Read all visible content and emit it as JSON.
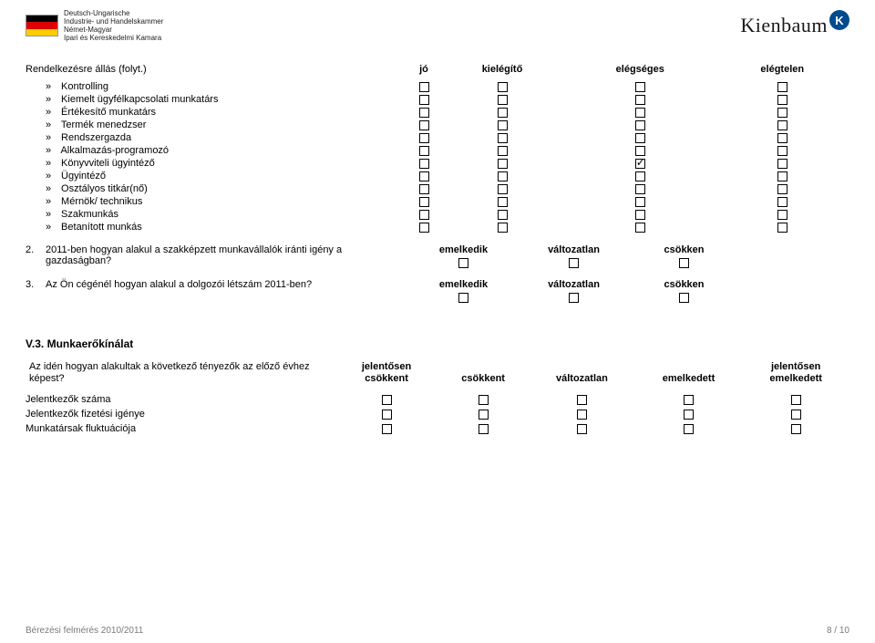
{
  "header": {
    "ahk_lines": [
      "Deutsch-Ungarische",
      "Industrie- und Handelskammer",
      "Német-Magyar",
      "Ipari és Kereskedelmi Kamara"
    ],
    "brand": "Kienbaum",
    "brand_badge": "K"
  },
  "section1": {
    "title": "Rendelkezésre állás (folyt.)",
    "columns": [
      "jó",
      "kielégítő",
      "elégséges",
      "elégtelen"
    ],
    "rows": [
      {
        "label": "Kontrolling",
        "checked_col": -1
      },
      {
        "label": "Kiemelt ügyfélkapcsolati munkatárs",
        "checked_col": -1
      },
      {
        "label": "Értékesítő munkatárs",
        "checked_col": -1
      },
      {
        "label": "Termék menedzser",
        "checked_col": -1
      },
      {
        "label": "Rendszergazda",
        "checked_col": -1
      },
      {
        "label": "Alkalmazás-programozó",
        "checked_col": -1
      },
      {
        "label": "Könyvviteli ügyintéző",
        "checked_col": 2
      },
      {
        "label": "Ügyintéző",
        "checked_col": -1
      },
      {
        "label": "Osztályos titkár(nő)",
        "checked_col": -1
      },
      {
        "label": "Mérnök/ technikus",
        "checked_col": -1
      },
      {
        "label": "Szakmunkás",
        "checked_col": -1
      },
      {
        "label": "Betanított munkás",
        "checked_col": -1
      }
    ]
  },
  "q2": {
    "num": "2.",
    "text": "2011-ben hogyan alakul a szakképzett munkavállalók iránti igény a gazdaságban?",
    "opts": [
      "emelkedik",
      "változatlan",
      "csökken"
    ]
  },
  "q3": {
    "num": "3.",
    "text": "Az Ön cégénél hogyan alakul a dolgozói létszám 2011-ben?",
    "opts": [
      "emelkedik",
      "változatlan",
      "csökken"
    ]
  },
  "v3": {
    "heading": "V.3. Munkaerőkínálat",
    "prompt": "Az idén hogyan alakultak a következő tényezők az előző évhez képest?",
    "columns": [
      "jelentősen\ncsökkent",
      "csökkent",
      "változatlan",
      "emelkedett",
      "jelentősen\nemelkedett"
    ],
    "rows": [
      "Jelentkezők száma",
      "Jelentkezők fizetési igénye",
      "Munkatársak fluktuációja"
    ]
  },
  "footer": {
    "left": "Bérezési felmérés 2010/2011",
    "right": "8 / 10"
  },
  "colors": {
    "text": "#000000",
    "footer": "#7a7a7a",
    "brand_badge_bg": "#004a8f"
  }
}
